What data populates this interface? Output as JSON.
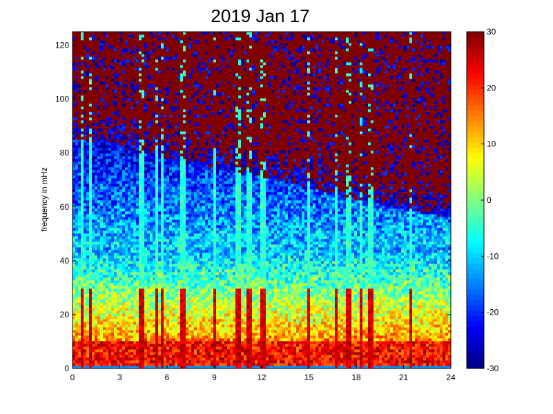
{
  "chart_data": {
    "type": "heatmap",
    "title": "2019 Jan 17",
    "xlabel": "",
    "ylabel": "frequency in mHz",
    "x_range": [
      0,
      24
    ],
    "y_range": [
      0,
      125
    ],
    "x_ticks": [
      0,
      3,
      6,
      9,
      12,
      15,
      18,
      21,
      24
    ],
    "y_ticks": [
      0,
      20,
      40,
      60,
      80,
      100,
      120
    ],
    "colorbar": {
      "range": [
        -30,
        30
      ],
      "ticks": [
        -30,
        -20,
        -10,
        0,
        10,
        20,
        30
      ],
      "colormap": "jet"
    },
    "grid": false,
    "features": {
      "low_frequency_band_level": 22,
      "high_frequency_saturation_level": 30,
      "vertical_streaks_hours": [
        0.6,
        1.2,
        4.4,
        5.3,
        5.7,
        7.0,
        9.0,
        10.5,
        11.2,
        12.1,
        15.0,
        16.7,
        17.5,
        18.3,
        18.9,
        21.5
      ]
    }
  }
}
